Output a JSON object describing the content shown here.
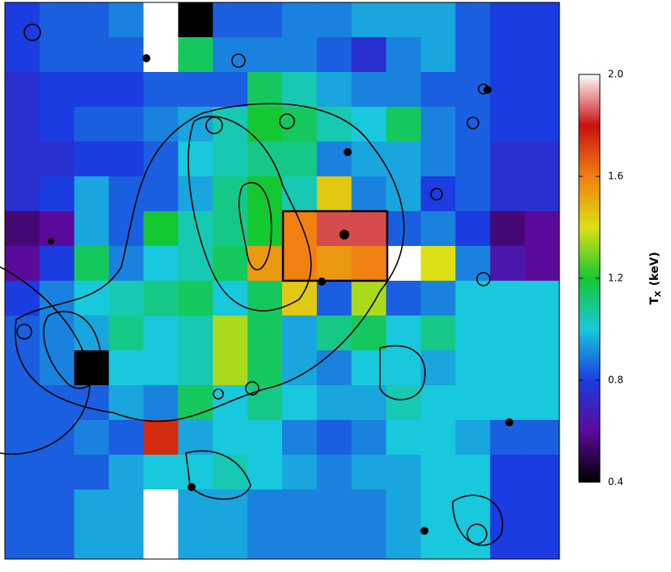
{
  "chart_data": {
    "type": "heatmap",
    "z": [
      [
        0.8,
        0.85,
        0.85,
        0.9,
        2.0,
        0.4,
        0.85,
        0.85,
        0.9,
        0.9,
        0.95,
        0.95,
        0.95,
        0.85,
        0.8,
        0.8
      ],
      [
        0.8,
        0.85,
        0.85,
        0.85,
        2.0,
        1.15,
        0.9,
        0.9,
        0.9,
        0.85,
        0.75,
        0.9,
        0.95,
        0.85,
        0.8,
        0.8
      ],
      [
        0.75,
        0.8,
        0.8,
        0.8,
        0.85,
        0.85,
        0.85,
        1.15,
        1.05,
        0.95,
        0.9,
        0.9,
        0.85,
        0.85,
        0.8,
        0.8
      ],
      [
        0.75,
        0.8,
        0.85,
        0.85,
        0.9,
        0.95,
        1.05,
        1.2,
        1.15,
        1.05,
        1.0,
        1.15,
        0.9,
        0.85,
        0.8,
        0.8
      ],
      [
        0.75,
        0.75,
        0.8,
        0.8,
        0.85,
        1.0,
        1.05,
        1.1,
        1.1,
        0.9,
        0.95,
        0.95,
        0.9,
        0.85,
        0.75,
        0.75
      ],
      [
        0.75,
        0.8,
        0.95,
        0.85,
        0.85,
        0.95,
        1.1,
        1.2,
        1.05,
        1.45,
        0.9,
        0.95,
        0.8,
        0.85,
        0.75,
        0.75
      ],
      [
        0.55,
        0.6,
        0.95,
        0.85,
        1.2,
        1.05,
        1.1,
        1.2,
        1.6,
        1.85,
        1.85,
        0.85,
        0.9,
        0.8,
        0.55,
        0.6
      ],
      [
        0.6,
        0.8,
        1.15,
        0.9,
        1.0,
        1.05,
        1.15,
        1.55,
        1.6,
        1.55,
        1.6,
        2.0,
        1.4,
        0.9,
        0.65,
        0.6
      ],
      [
        0.8,
        0.9,
        1.0,
        1.05,
        1.1,
        1.15,
        1.0,
        1.15,
        1.45,
        0.85,
        1.35,
        0.85,
        0.9,
        1.0,
        1.0,
        1.0
      ],
      [
        0.85,
        0.9,
        0.95,
        1.1,
        1.0,
        1.05,
        1.35,
        1.15,
        0.95,
        1.1,
        1.15,
        1.0,
        1.1,
        1.0,
        1.0,
        1.0
      ],
      [
        0.85,
        0.9,
        0.4,
        1.0,
        1.0,
        1.05,
        1.35,
        1.15,
        0.95,
        0.9,
        1.0,
        1.0,
        0.95,
        1.0,
        1.0,
        1.0
      ],
      [
        0.85,
        0.85,
        0.85,
        0.95,
        0.9,
        1.15,
        1.0,
        1.1,
        1.0,
        0.95,
        0.95,
        1.05,
        1.0,
        1.0,
        1.0,
        1.0
      ],
      [
        0.85,
        0.85,
        0.9,
        0.85,
        1.75,
        0.95,
        1.0,
        1.0,
        0.9,
        0.85,
        0.9,
        1.0,
        1.0,
        0.95,
        0.85,
        0.85
      ],
      [
        0.85,
        0.85,
        0.85,
        0.95,
        1.0,
        1.0,
        1.05,
        1.0,
        0.95,
        0.9,
        0.95,
        0.95,
        1.0,
        1.0,
        0.8,
        0.8
      ],
      [
        0.85,
        0.85,
        0.95,
        0.95,
        2.0,
        0.95,
        0.95,
        0.9,
        0.9,
        0.9,
        0.9,
        0.95,
        1.0,
        1.0,
        0.8,
        0.8
      ],
      [
        0.85,
        0.85,
        0.95,
        0.95,
        2.0,
        0.95,
        0.95,
        0.9,
        0.9,
        0.9,
        0.9,
        0.95,
        1.0,
        1.0,
        0.8,
        0.8
      ]
    ],
    "zlim": [
      0.4,
      2.0
    ],
    "zticks": [
      {
        "value": 0.4,
        "label": "0.4"
      },
      {
        "value": 0.8,
        "label": "0.8"
      },
      {
        "value": 1.2,
        "label": "1.2"
      },
      {
        "value": 1.6,
        "label": "1.6"
      },
      {
        "value": 2.0,
        "label": "2.0"
      }
    ],
    "colors": [
      "#000000",
      "#5a0a9a",
      "#1a3ce0",
      "#18c8dc",
      "#14c832",
      "#dce014",
      "#f08010",
      "#c81010",
      "#ffffff"
    ],
    "colorbar_label": "T",
    "colorbar_label_sub": "X",
    "colorbar_label_unit": "(keV)"
  }
}
